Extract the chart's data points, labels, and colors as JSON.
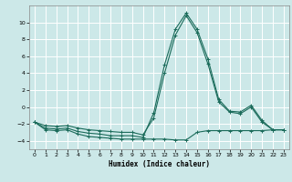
{
  "title": "",
  "xlabel": "Humidex (Indice chaleur)",
  "bg_color": "#cce8e8",
  "grid_color": "#ffffff",
  "line_color": "#1a6b5a",
  "xlim": [
    -0.5,
    23.5
  ],
  "ylim": [
    -5,
    12
  ],
  "yticks": [
    -4,
    -2,
    0,
    2,
    4,
    6,
    8,
    10
  ],
  "xticks": [
    0,
    1,
    2,
    3,
    4,
    5,
    6,
    7,
    8,
    9,
    10,
    11,
    12,
    13,
    14,
    15,
    16,
    17,
    18,
    19,
    20,
    21,
    22,
    23
  ],
  "line1_x": [
    0,
    1,
    2,
    3,
    4,
    5,
    6,
    7,
    8,
    9,
    10,
    11,
    12,
    13,
    14,
    15,
    16,
    17,
    18,
    19,
    20,
    21,
    22,
    23
  ],
  "line1_y": [
    -1.8,
    -2.7,
    -2.8,
    -2.7,
    -3.2,
    -3.5,
    -3.6,
    -3.7,
    -3.8,
    -3.8,
    -3.8,
    -3.8,
    -3.8,
    -3.9,
    -3.9,
    -3.0,
    -2.8,
    -2.8,
    -2.8,
    -2.8,
    -2.8,
    -2.8,
    -2.7,
    -2.7
  ],
  "line2_x": [
    0,
    1,
    2,
    3,
    4,
    5,
    6,
    7,
    8,
    9,
    10,
    11,
    12,
    13,
    14,
    15,
    16,
    17,
    18,
    19,
    20,
    21,
    22,
    23
  ],
  "line2_y": [
    -1.8,
    -2.5,
    -2.6,
    -2.5,
    -2.9,
    -3.1,
    -3.2,
    -3.4,
    -3.4,
    -3.4,
    -3.6,
    -0.7,
    5.0,
    9.2,
    11.1,
    9.2,
    5.7,
    0.9,
    -0.5,
    -0.6,
    0.2,
    -1.6,
    -2.7,
    -2.7
  ],
  "line3_x": [
    0,
    1,
    2,
    3,
    4,
    5,
    6,
    7,
    8,
    9,
    10,
    11,
    12,
    13,
    14,
    15,
    16,
    17,
    18,
    19,
    20,
    21,
    22,
    23
  ],
  "line3_y": [
    -1.8,
    -2.2,
    -2.3,
    -2.2,
    -2.5,
    -2.7,
    -2.8,
    -2.9,
    -3.0,
    -3.0,
    -3.3,
    -1.3,
    4.0,
    8.5,
    10.8,
    8.8,
    5.1,
    0.6,
    -0.6,
    -0.8,
    0.0,
    -1.8,
    -2.7,
    -2.7
  ]
}
